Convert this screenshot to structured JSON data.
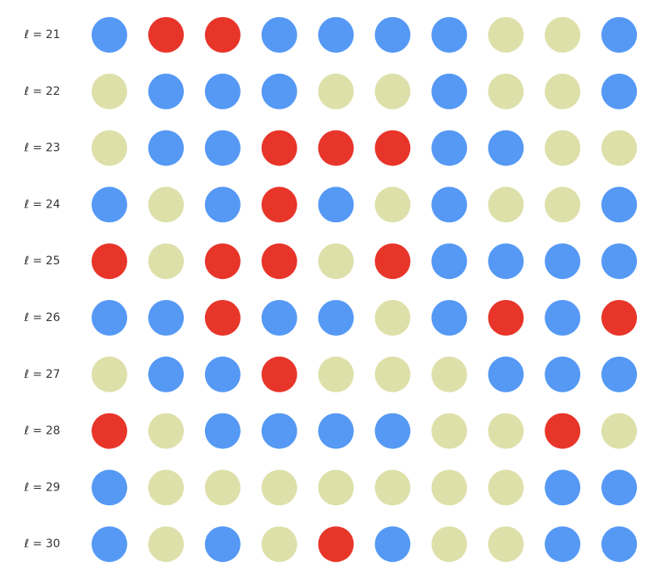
{
  "chart_data": {
    "type": "heatmap",
    "title": "",
    "xlabel": "",
    "ylabel": "",
    "grid": false,
    "legend": "none",
    "marker": "circle",
    "row_labels": [
      "ℓ = 21",
      "ℓ = 22",
      "ℓ = 23",
      "ℓ = 24",
      "ℓ = 25",
      "ℓ = 26",
      "ℓ = 27",
      "ℓ = 28",
      "ℓ = 29",
      "ℓ = 30"
    ],
    "columns": 10,
    "palette": {
      "B": "#5599f5",
      "R": "#e8352a",
      "Y": "#dee0aa"
    },
    "cells": [
      [
        "B",
        "R",
        "R",
        "B",
        "B",
        "B",
        "B",
        "Y",
        "Y",
        "B"
      ],
      [
        "Y",
        "B",
        "B",
        "B",
        "Y",
        "Y",
        "B",
        "Y",
        "Y",
        "B"
      ],
      [
        "Y",
        "B",
        "B",
        "R",
        "R",
        "R",
        "B",
        "B",
        "Y",
        "Y"
      ],
      [
        "B",
        "Y",
        "B",
        "R",
        "B",
        "Y",
        "B",
        "Y",
        "Y",
        "B"
      ],
      [
        "R",
        "Y",
        "R",
        "R",
        "Y",
        "R",
        "B",
        "B",
        "B",
        "B"
      ],
      [
        "B",
        "B",
        "R",
        "B",
        "B",
        "Y",
        "B",
        "R",
        "B",
        "R"
      ],
      [
        "Y",
        "B",
        "B",
        "R",
        "Y",
        "Y",
        "Y",
        "B",
        "B",
        "B"
      ],
      [
        "R",
        "Y",
        "B",
        "B",
        "B",
        "B",
        "Y",
        "Y",
        "R",
        "Y"
      ],
      [
        "B",
        "Y",
        "Y",
        "Y",
        "Y",
        "Y",
        "Y",
        "Y",
        "B",
        "B"
      ],
      [
        "B",
        "Y",
        "B",
        "Y",
        "R",
        "B",
        "Y",
        "Y",
        "B",
        "B"
      ]
    ]
  }
}
